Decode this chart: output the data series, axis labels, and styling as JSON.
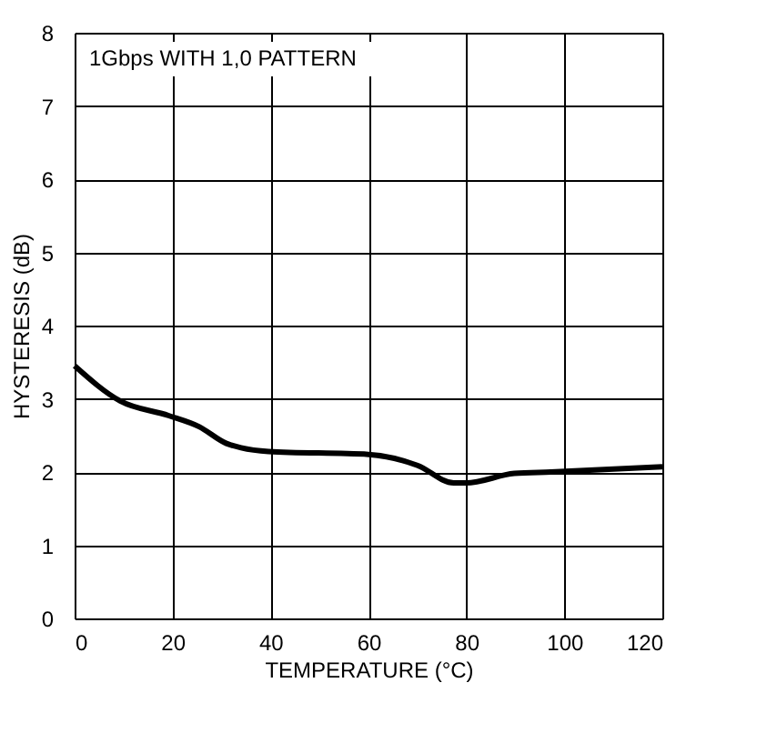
{
  "chart_data": {
    "type": "line",
    "xlabel": "TEMPERATURE (°C)",
    "ylabel": "HYSTERESIS (dB)",
    "annotations": [
      "1Gbps WITH 1,0 PATTERN"
    ],
    "series": [
      {
        "color": "#000000",
        "x": [
          0,
          9.3,
          19.2,
          25.4,
          31,
          34,
          39.6,
          60,
          70,
          77.4,
          79.9,
          89.8,
          97.2,
          120
        ],
        "values": [
          3.45,
          2.97,
          2.77,
          2.62,
          2.39,
          2.33,
          2.28,
          2.24,
          2.09,
          1.85,
          1.85,
          1.98,
          2.0,
          2.07
        ]
      }
    ],
    "xlim": [
      0,
      120
    ],
    "xticks": [
      0,
      20,
      40,
      60,
      80,
      100,
      120
    ],
    "ylim": [
      0,
      8
    ],
    "yticks": [
      0,
      1,
      2,
      3,
      4,
      5,
      6,
      7,
      8
    ],
    "grid": true,
    "line_style": "solid",
    "marker": "none"
  }
}
